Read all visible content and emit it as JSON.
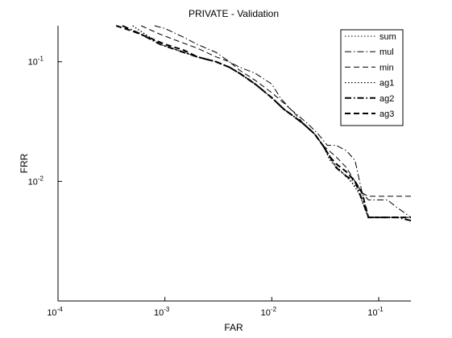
{
  "chart_data": {
    "type": "line",
    "title": "PRIVATE - Validation",
    "xlabel": "FAR",
    "ylabel": "FRR",
    "xscale": "log",
    "yscale": "log",
    "xlim": [
      0.0001,
      0.2
    ],
    "ylim": [
      0.001,
      0.2
    ],
    "grid": false,
    "legend_position": "top-right",
    "x_ticks": [
      {
        "value": 0.0001,
        "base": "10",
        "exp": "-4"
      },
      {
        "value": 0.001,
        "base": "10",
        "exp": "-3"
      },
      {
        "value": 0.01,
        "base": "10",
        "exp": "-2"
      },
      {
        "value": 0.1,
        "base": "10",
        "exp": "-1"
      }
    ],
    "y_ticks": [
      {
        "value": 0.01,
        "base": "10",
        "exp": "-2"
      },
      {
        "value": 0.1,
        "base": "10",
        "exp": "-1"
      }
    ],
    "series": [
      {
        "name": "sum",
        "style": "dotted",
        "width": 1,
        "x": [
          0.0005,
          0.0009,
          0.0015,
          0.002,
          0.003,
          0.004,
          0.005,
          0.007,
          0.01,
          0.013,
          0.016,
          0.02,
          0.025,
          0.03,
          0.035,
          0.045,
          0.055,
          0.07,
          0.08,
          0.1,
          0.13,
          0.2
        ],
        "y": [
          0.2,
          0.14,
          0.12,
          0.11,
          0.1,
          0.09,
          0.08,
          0.065,
          0.05,
          0.04,
          0.035,
          0.03,
          0.025,
          0.02,
          0.015,
          0.012,
          0.01,
          0.008,
          0.005,
          0.005,
          0.005,
          0.005
        ]
      },
      {
        "name": "mul",
        "style": "dashdot",
        "width": 1,
        "x": [
          0.0008,
          0.001,
          0.0015,
          0.002,
          0.003,
          0.004,
          0.005,
          0.007,
          0.01,
          0.012,
          0.015,
          0.018,
          0.022,
          0.027,
          0.033,
          0.04,
          0.05,
          0.06,
          0.07,
          0.08,
          0.1,
          0.12,
          0.15,
          0.2
        ],
        "y": [
          0.2,
          0.19,
          0.16,
          0.14,
          0.12,
          0.1,
          0.09,
          0.08,
          0.065,
          0.05,
          0.04,
          0.035,
          0.03,
          0.025,
          0.02,
          0.02,
          0.018,
          0.015,
          0.008,
          0.007,
          0.007,
          0.007,
          0.006,
          0.005
        ]
      },
      {
        "name": "min",
        "style": "dashed",
        "width": 1,
        "x": [
          0.0006,
          0.0009,
          0.0013,
          0.002,
          0.003,
          0.004,
          0.005,
          0.007,
          0.01,
          0.013,
          0.016,
          0.02,
          0.025,
          0.03,
          0.04,
          0.05,
          0.06,
          0.07,
          0.08,
          0.1,
          0.12,
          0.2
        ],
        "y": [
          0.2,
          0.17,
          0.15,
          0.13,
          0.11,
          0.1,
          0.085,
          0.07,
          0.055,
          0.045,
          0.038,
          0.03,
          0.025,
          0.02,
          0.016,
          0.013,
          0.01,
          0.008,
          0.0075,
          0.0075,
          0.0075,
          0.0075
        ]
      },
      {
        "name": "ag1",
        "style": "dotted",
        "width": 1.2,
        "x": [
          0.0005,
          0.0009,
          0.0015,
          0.002,
          0.003,
          0.004,
          0.005,
          0.007,
          0.01,
          0.013,
          0.016,
          0.02,
          0.025,
          0.03,
          0.035,
          0.045,
          0.055,
          0.065,
          0.08,
          0.1,
          0.13,
          0.2
        ],
        "y": [
          0.2,
          0.14,
          0.12,
          0.11,
          0.1,
          0.09,
          0.08,
          0.065,
          0.05,
          0.04,
          0.035,
          0.03,
          0.025,
          0.02,
          0.015,
          0.012,
          0.01,
          0.008,
          0.005,
          0.005,
          0.005,
          0.005
        ]
      },
      {
        "name": "ag2",
        "style": "dashdot",
        "width": 2,
        "x": [
          0.0004,
          0.0006,
          0.0009,
          0.0013,
          0.002,
          0.003,
          0.004,
          0.005,
          0.007,
          0.01,
          0.013,
          0.016,
          0.02,
          0.025,
          0.03,
          0.035,
          0.04,
          0.05,
          0.06,
          0.07,
          0.08,
          0.1,
          0.15,
          0.2
        ],
        "y": [
          0.2,
          0.17,
          0.14,
          0.125,
          0.11,
          0.1,
          0.09,
          0.08,
          0.065,
          0.05,
          0.04,
          0.035,
          0.03,
          0.025,
          0.02,
          0.016,
          0.013,
          0.011,
          0.01,
          0.007,
          0.005,
          0.005,
          0.005,
          0.0047
        ]
      },
      {
        "name": "ag3",
        "style": "dashed",
        "width": 2,
        "x": [
          0.00035,
          0.0005,
          0.0007,
          0.001,
          0.0015,
          0.002,
          0.003,
          0.004,
          0.005,
          0.007,
          0.01,
          0.013,
          0.016,
          0.02,
          0.025,
          0.03,
          0.035,
          0.04,
          0.05,
          0.06,
          0.07,
          0.08,
          0.1,
          0.2
        ],
        "y": [
          0.2,
          0.18,
          0.16,
          0.14,
          0.125,
          0.11,
          0.1,
          0.09,
          0.08,
          0.065,
          0.05,
          0.04,
          0.035,
          0.03,
          0.025,
          0.02,
          0.016,
          0.014,
          0.012,
          0.01,
          0.008,
          0.005,
          0.005,
          0.005
        ]
      }
    ]
  }
}
